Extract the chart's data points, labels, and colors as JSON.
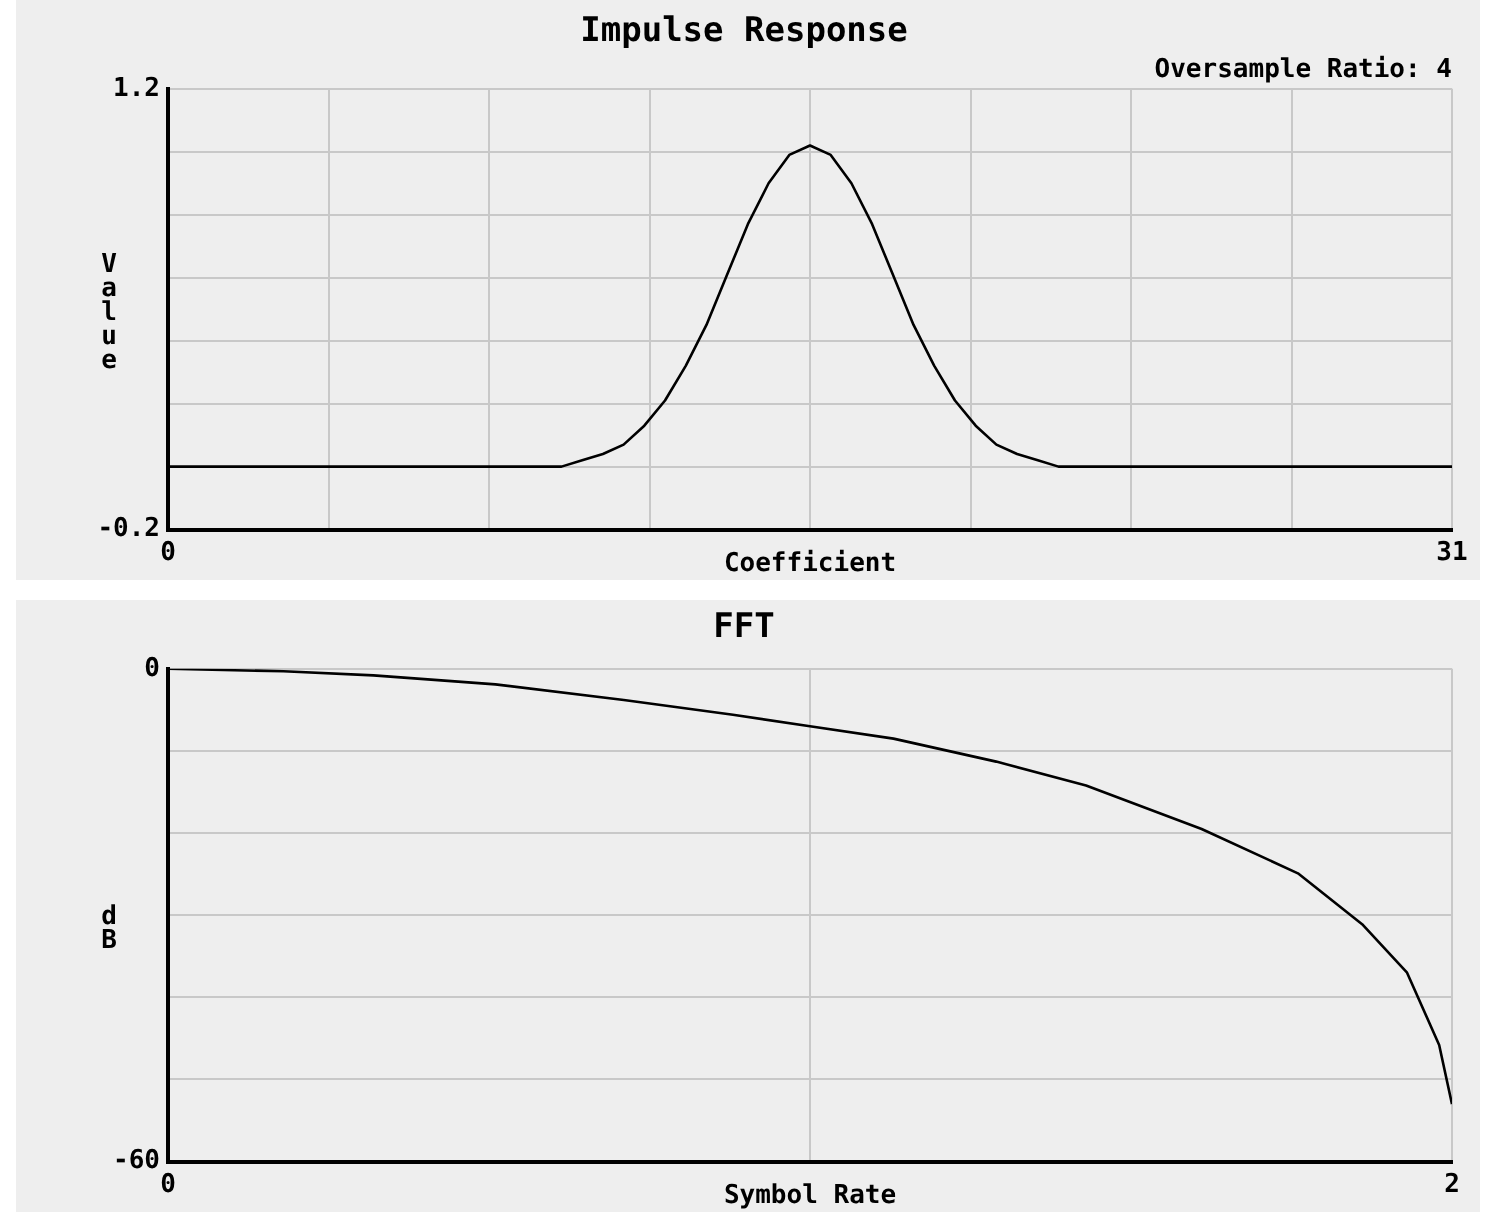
{
  "chart_data": [
    {
      "type": "line",
      "title": "Impulse Response",
      "xlabel": "Coefficient",
      "ylabel": "Value",
      "annotations": [
        "Oversample Ratio: 4"
      ],
      "x": [
        0,
        9.5,
        10,
        10.5,
        11,
        11.5,
        12,
        12.5,
        13,
        13.5,
        14,
        14.5,
        15,
        15.5,
        16,
        16.5,
        17,
        17.5,
        18,
        18.5,
        19,
        19.5,
        20,
        20.5,
        21,
        21.5,
        31
      ],
      "series": [
        {
          "color": "#000000",
          "values": [
            0,
            0,
            0.02,
            0.04,
            0.07,
            0.13,
            0.21,
            0.32,
            0.45,
            0.61,
            0.77,
            0.9,
            0.99,
            1.02,
            0.99,
            0.9,
            0.77,
            0.61,
            0.45,
            0.32,
            0.21,
            0.13,
            0.07,
            0.04,
            0.02,
            0,
            0
          ]
        }
      ],
      "xlim": [
        0,
        31
      ],
      "xticks": [
        0,
        {
          "value": 3.875,
          "label": null
        },
        {
          "value": 7.75,
          "label": null
        },
        {
          "value": 11.625,
          "label": null
        },
        {
          "value": 15.5,
          "label": null
        },
        {
          "value": 19.375,
          "label": null
        },
        {
          "value": 23.25,
          "label": null
        },
        {
          "value": 27.125,
          "label": null
        },
        31
      ],
      "ylim": [
        -0.2,
        1.2
      ],
      "yticks": [
        -0.2,
        {
          "value": 0,
          "label": null
        },
        {
          "value": 0.2,
          "label": null
        },
        {
          "value": 0.4,
          "label": null
        },
        {
          "value": 0.6,
          "label": null
        },
        {
          "value": 0.8,
          "label": null
        },
        {
          "value": 1.0,
          "label": null
        },
        1.2
      ],
      "grid": true,
      "legend": false,
      "marker": "none",
      "line_style": "solid"
    },
    {
      "type": "line",
      "title": "FFT",
      "xlabel": "Symbol Rate",
      "ylabel": "dB",
      "x": [
        0,
        0.18,
        0.32,
        0.51,
        0.71,
        0.88,
        1.0,
        1.13,
        1.29,
        1.43,
        1.61,
        1.76,
        1.86,
        1.93,
        1.98,
        2.0
      ],
      "series": [
        {
          "color": "#000000",
          "values": [
            0,
            -0.3,
            -0.8,
            -1.9,
            -3.8,
            -5.6,
            -7.0,
            -8.5,
            -11.3,
            -14.2,
            -19.5,
            -24.9,
            -31.1,
            -37.0,
            -45.8,
            -53
          ]
        }
      ],
      "xlim": [
        0,
        2
      ],
      "xticks": [
        0,
        {
          "value": 1,
          "label": null
        },
        2
      ],
      "ylim": [
        -60,
        0
      ],
      "yticks": [
        -60,
        {
          "value": -50,
          "label": null
        },
        {
          "value": -40,
          "label": null
        },
        {
          "value": -30,
          "label": null
        },
        {
          "value": -20,
          "label": null
        },
        {
          "value": -10,
          "label": null
        },
        0
      ],
      "grid": true,
      "legend": false,
      "marker": "none",
      "line_style": "solid"
    }
  ]
}
